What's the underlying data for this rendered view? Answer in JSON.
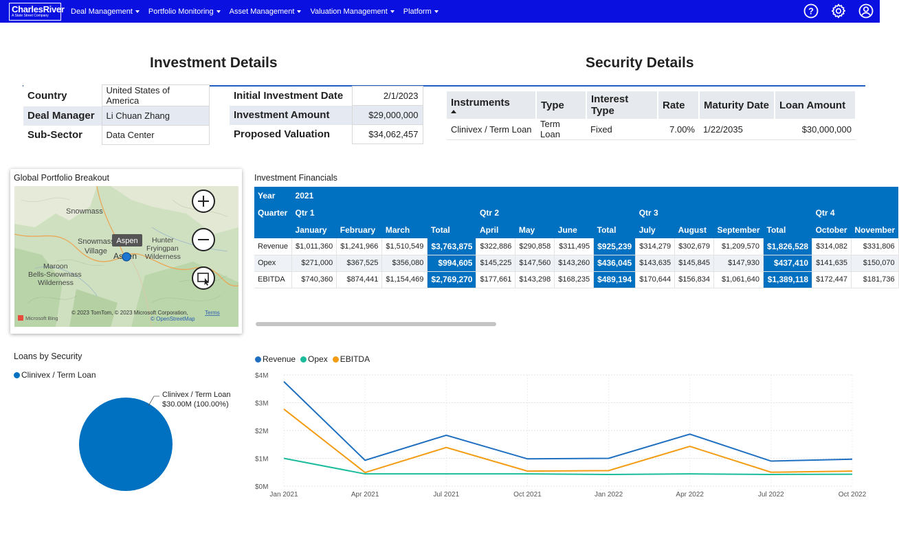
{
  "topbar": {
    "logo_name": "CharlesRiver",
    "logo_sub": "A State Street Company",
    "nav": [
      "Deal Management",
      "Portfolio Monitoring",
      "Asset Management",
      "Valuation Management",
      "Platform"
    ],
    "icons": [
      "help-icon",
      "gear-icon",
      "user-icon"
    ],
    "bg_color": "#0a10e0"
  },
  "investment": {
    "title": "Investment Details",
    "left_rows": [
      {
        "label": "Country",
        "value": "United States of America"
      },
      {
        "label": "Deal Manager",
        "value": "Li Chuan  Zhang"
      },
      {
        "label": "Sub-Sector",
        "value": "Data Center"
      }
    ],
    "right_rows": [
      {
        "label": "Initial Investment Date",
        "value": "2/1/2023"
      },
      {
        "label": "Investment Amount",
        "value": "$29,000,000"
      },
      {
        "label": "Proposed Valuation",
        "value": "$34,062,457"
      }
    ]
  },
  "security": {
    "title": "Security Details",
    "headers": [
      "Instruments",
      "Type",
      "Interest Type",
      "Rate",
      "Maturity Date",
      "Loan Amount"
    ],
    "row": [
      "Clinivex / Term Loan",
      "Term Loan",
      "Fixed",
      "7.00%",
      "1/22/2035",
      "$30,000,000"
    ]
  },
  "map_card": {
    "title": "Global Portfolio Breakout",
    "labels": {
      "snowmass": "Snowmass",
      "snowmass_village_1": "Snowmass",
      "snowmass_village_2": "Village",
      "aspen": "Aspen",
      "aspen_tooltip": "Aspen",
      "hunter_1": "Hunter",
      "hunter_2": "Fryingpan",
      "hunter_3": "Wilderness",
      "maroon_1": "Maroon",
      "maroon_2": "Bells-Snowmass",
      "maroon_3": "Wilderness"
    },
    "attribution": "© 2023 TomTom, © 2023 Microsoft Corporation,",
    "terms": "Terms",
    "osm": "© OpenStreetMap",
    "bing": "Microsoft Bing",
    "buttons": [
      "zoom-in-icon",
      "zoom-out-icon",
      "select-area-icon"
    ]
  },
  "financials": {
    "title": "Investment Financials",
    "year_label": "Year",
    "year": "2021",
    "quarter_label": "Quarter",
    "quarters": [
      "Qtr 1",
      "Qtr 2",
      "Qtr 3",
      "Qtr 4"
    ],
    "months": [
      "January",
      "February",
      "March",
      "Total",
      "April",
      "May",
      "June",
      "Total",
      "July",
      "August",
      "September",
      "Total",
      "October",
      "November"
    ],
    "rows": [
      {
        "label": "Revenue",
        "values": [
          "$1,011,360",
          "$1,241,966",
          "$1,510,549",
          "$3,763,875",
          "$322,886",
          "$290,858",
          "$311,495",
          "$925,239",
          "$314,279",
          "$302,679",
          "$1,209,570",
          "$1,826,528",
          "$314,082",
          "$331,806"
        ]
      },
      {
        "label": "Opex",
        "values": [
          "$271,000",
          "$367,525",
          "$356,080",
          "$994,605",
          "$145,225",
          "$147,560",
          "$143,260",
          "$436,045",
          "$143,635",
          "$145,845",
          "$147,930",
          "$437,410",
          "$141,635",
          "$150,070"
        ]
      },
      {
        "label": "EBITDA",
        "values": [
          "$740,360",
          "$874,441",
          "$1,154,469",
          "$2,769,270",
          "$177,661",
          "$143,298",
          "$168,235",
          "$489,194",
          "$170,644",
          "$156,834",
          "$1,061,640",
          "$1,389,118",
          "$172,447",
          "$181,736"
        ]
      }
    ],
    "accent": "#0070c0"
  },
  "loans_card": {
    "title": "Loans by Security"
  },
  "chart_data": [
    {
      "type": "pie",
      "title": "Loans by Security",
      "legend": [
        "Clinivex / Term Loan"
      ],
      "slices": [
        {
          "name": "Clinivex / Term Loan",
          "value": 30.0,
          "percent": 100.0,
          "label": "Clinivex / Term Loan",
          "value_label": "$30.00M (100.00%)",
          "color": "#0070c0"
        }
      ]
    },
    {
      "type": "line",
      "x": [
        "Jan 2021",
        "Apr 2021",
        "Jul 2021",
        "Oct 2021",
        "Jan 2022",
        "Apr 2022",
        "Jul 2022",
        "Oct 2022"
      ],
      "y_ticks": [
        "$0M",
        "$1M",
        "$2M",
        "$3M",
        "$4M"
      ],
      "ylim": [
        0,
        4
      ],
      "series": [
        {
          "name": "Revenue",
          "color": "#1f6fc0",
          "values": [
            3.76,
            0.93,
            1.83,
            0.98,
            1.0,
            1.87,
            0.9,
            0.97
          ]
        },
        {
          "name": "Opex",
          "color": "#1abc9c",
          "values": [
            1.0,
            0.44,
            0.44,
            0.44,
            0.42,
            0.44,
            0.42,
            0.43
          ]
        },
        {
          "name": "EBITDA",
          "color": "#f39c12",
          "values": [
            2.77,
            0.49,
            1.39,
            0.54,
            0.56,
            1.43,
            0.5,
            0.54
          ]
        }
      ],
      "grid": true,
      "legend_position": "top-left"
    }
  ]
}
